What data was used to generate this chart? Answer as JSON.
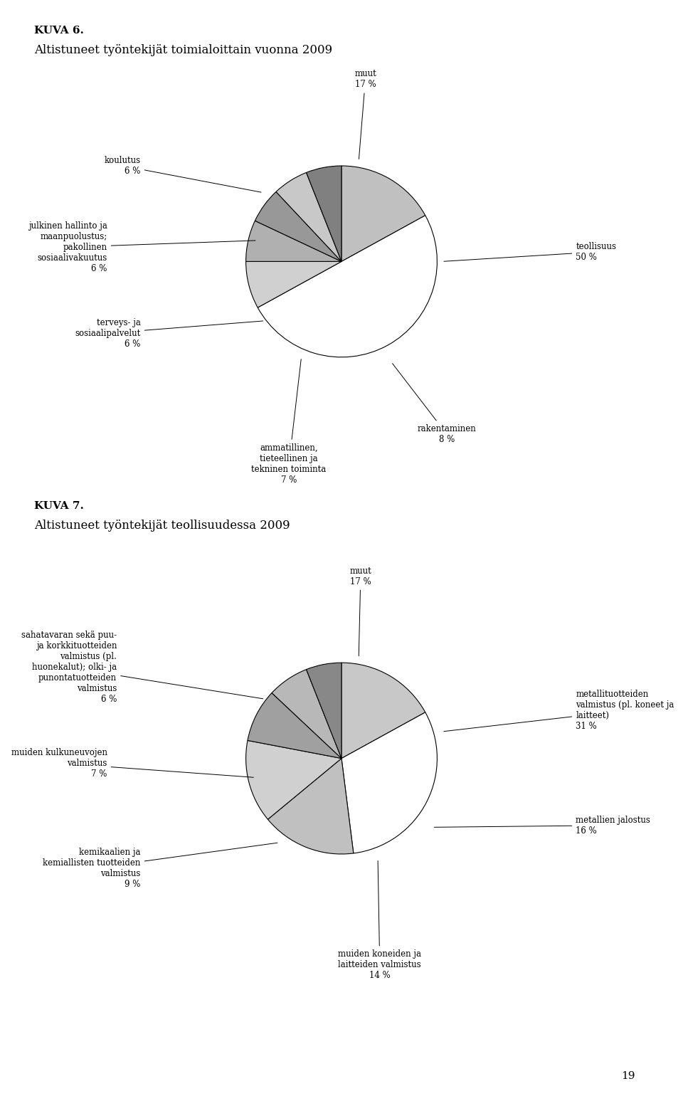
{
  "fig_width": 9.6,
  "fig_height": 15.47,
  "background_color": "#ffffff",
  "kuva6_label": "KUVA 6.",
  "chart1_title": "Altistuneet työntekijät toimialoittain vuonna 2009",
  "chart1_values": [
    17,
    50,
    8,
    7,
    6,
    6,
    6
  ],
  "chart1_colors": [
    "#c0c0c0",
    "#ffffff",
    "#d0d0d0",
    "#b0b0b0",
    "#989898",
    "#c8c8c8",
    "#808080"
  ],
  "kuva7_label": "KUVA 7.",
  "chart2_title": "Altistuneet työntekijät teollisuudessa 2009",
  "chart2_values": [
    17,
    31,
    16,
    14,
    9,
    7,
    6
  ],
  "chart2_colors": [
    "#c8c8c8",
    "#ffffff",
    "#c0c0c0",
    "#d0d0d0",
    "#a0a0a0",
    "#b8b8b8",
    "#888888"
  ],
  "font_size_title": 12,
  "font_size_label": 8.5,
  "font_size_kuva": 11,
  "page_number": "19"
}
